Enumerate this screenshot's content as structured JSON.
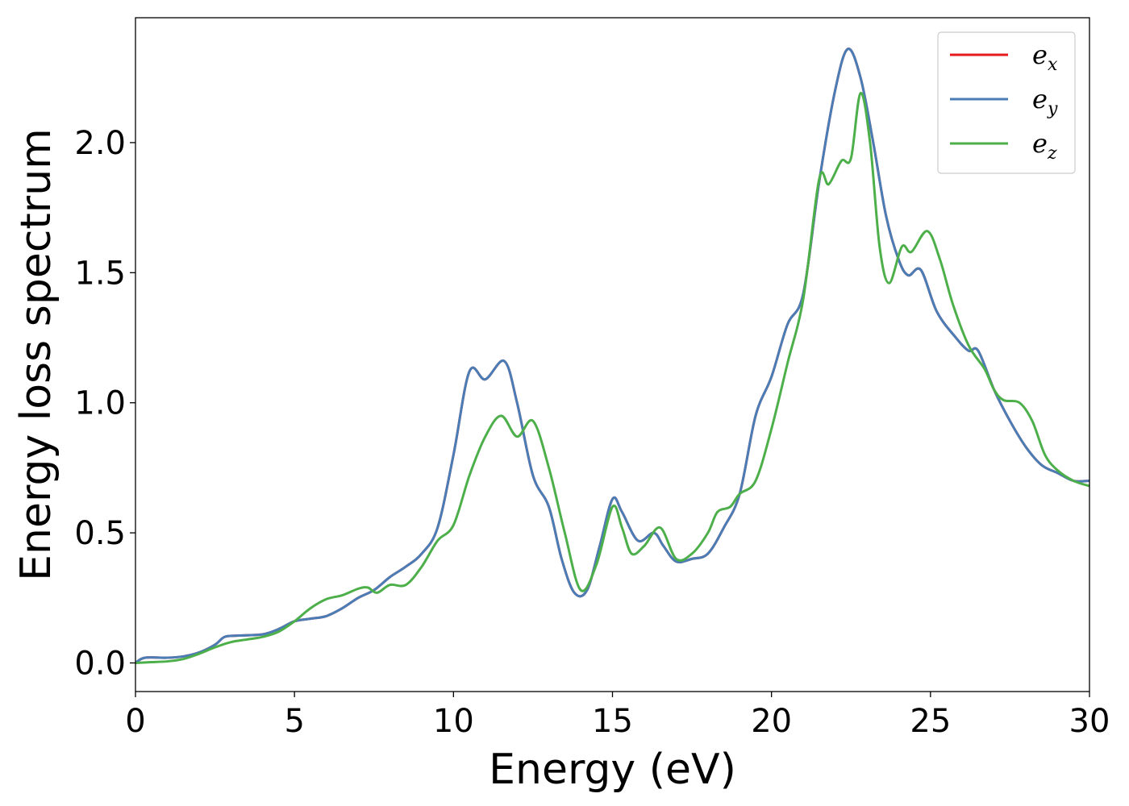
{
  "chart_data": {
    "type": "line",
    "xlabel": "Energy (eV)",
    "ylabel": "Energy loss spectrum",
    "xlim": [
      0,
      30
    ],
    "ylim": [
      -0.11,
      2.48
    ],
    "xticks": [
      0,
      5,
      10,
      15,
      20,
      25,
      30
    ],
    "yticks": [
      0.0,
      0.5,
      1.0,
      1.5,
      2.0
    ],
    "xtick_labels": [
      "0",
      "5",
      "10",
      "15",
      "20",
      "25",
      "30"
    ],
    "ytick_labels": [
      "0.0",
      "0.5",
      "1.0",
      "1.5",
      "2.0"
    ],
    "grid": false,
    "legend_position": "top-right",
    "series": [
      {
        "name": "e",
        "subscript": "x",
        "color": "#e41a1c",
        "points": [
          [
            0,
            0
          ],
          [
            0.3,
            0.02
          ],
          [
            1,
            0.02
          ],
          [
            1.5,
            0.025
          ],
          [
            2,
            0.04
          ],
          [
            2.5,
            0.07
          ],
          [
            2.8,
            0.1
          ],
          [
            3.2,
            0.105
          ],
          [
            4,
            0.11
          ],
          [
            4.5,
            0.13
          ],
          [
            5,
            0.16
          ],
          [
            5.5,
            0.17
          ],
          [
            6,
            0.18
          ],
          [
            6.5,
            0.21
          ],
          [
            7,
            0.25
          ],
          [
            7.5,
            0.28
          ],
          [
            8,
            0.33
          ],
          [
            8.5,
            0.37
          ],
          [
            9,
            0.42
          ],
          [
            9.5,
            0.52
          ],
          [
            10,
            0.8
          ],
          [
            10.5,
            1.12
          ],
          [
            11,
            1.09
          ],
          [
            11.6,
            1.16
          ],
          [
            12,
            1.0
          ],
          [
            12.5,
            0.72
          ],
          [
            13,
            0.6
          ],
          [
            13.4,
            0.4
          ],
          [
            13.8,
            0.27
          ],
          [
            14.2,
            0.28
          ],
          [
            14.6,
            0.45
          ],
          [
            15,
            0.63
          ],
          [
            15.3,
            0.58
          ],
          [
            15.8,
            0.47
          ],
          [
            16.3,
            0.5
          ],
          [
            16.6,
            0.45
          ],
          [
            17,
            0.39
          ],
          [
            17.5,
            0.4
          ],
          [
            18,
            0.42
          ],
          [
            18.5,
            0.52
          ],
          [
            19,
            0.65
          ],
          [
            19.5,
            0.95
          ],
          [
            20,
            1.1
          ],
          [
            20.5,
            1.3
          ],
          [
            21,
            1.42
          ],
          [
            21.5,
            1.85
          ],
          [
            22,
            2.2
          ],
          [
            22.4,
            2.36
          ],
          [
            22.8,
            2.25
          ],
          [
            23.2,
            2.0
          ],
          [
            23.6,
            1.72
          ],
          [
            24,
            1.55
          ],
          [
            24.3,
            1.49
          ],
          [
            24.7,
            1.51
          ],
          [
            25.2,
            1.35
          ],
          [
            25.8,
            1.25
          ],
          [
            26.2,
            1.2
          ],
          [
            26.5,
            1.2
          ],
          [
            27,
            1.05
          ],
          [
            27.5,
            0.93
          ],
          [
            28,
            0.83
          ],
          [
            28.5,
            0.76
          ],
          [
            29,
            0.73
          ],
          [
            29.5,
            0.7
          ],
          [
            30,
            0.7
          ]
        ]
      },
      {
        "name": "e",
        "subscript": "y",
        "color": "#4a7db5",
        "points": [
          [
            0,
            0
          ],
          [
            0.3,
            0.02
          ],
          [
            1,
            0.02
          ],
          [
            1.5,
            0.025
          ],
          [
            2,
            0.04
          ],
          [
            2.5,
            0.07
          ],
          [
            2.8,
            0.1
          ],
          [
            3.2,
            0.105
          ],
          [
            4,
            0.11
          ],
          [
            4.5,
            0.13
          ],
          [
            5,
            0.16
          ],
          [
            5.5,
            0.17
          ],
          [
            6,
            0.18
          ],
          [
            6.5,
            0.21
          ],
          [
            7,
            0.25
          ],
          [
            7.5,
            0.28
          ],
          [
            8,
            0.33
          ],
          [
            8.5,
            0.37
          ],
          [
            9,
            0.42
          ],
          [
            9.5,
            0.52
          ],
          [
            10,
            0.8
          ],
          [
            10.5,
            1.12
          ],
          [
            11,
            1.09
          ],
          [
            11.6,
            1.16
          ],
          [
            12,
            1.0
          ],
          [
            12.5,
            0.72
          ],
          [
            13,
            0.6
          ],
          [
            13.4,
            0.4
          ],
          [
            13.8,
            0.27
          ],
          [
            14.2,
            0.28
          ],
          [
            14.6,
            0.45
          ],
          [
            15,
            0.63
          ],
          [
            15.3,
            0.58
          ],
          [
            15.8,
            0.47
          ],
          [
            16.3,
            0.5
          ],
          [
            16.6,
            0.45
          ],
          [
            17,
            0.39
          ],
          [
            17.5,
            0.4
          ],
          [
            18,
            0.42
          ],
          [
            18.5,
            0.52
          ],
          [
            19,
            0.65
          ],
          [
            19.5,
            0.95
          ],
          [
            20,
            1.1
          ],
          [
            20.5,
            1.3
          ],
          [
            21,
            1.42
          ],
          [
            21.5,
            1.85
          ],
          [
            22,
            2.2
          ],
          [
            22.4,
            2.36
          ],
          [
            22.8,
            2.25
          ],
          [
            23.2,
            2.0
          ],
          [
            23.6,
            1.72
          ],
          [
            24,
            1.55
          ],
          [
            24.3,
            1.49
          ],
          [
            24.7,
            1.51
          ],
          [
            25.2,
            1.35
          ],
          [
            25.8,
            1.25
          ],
          [
            26.2,
            1.2
          ],
          [
            26.5,
            1.2
          ],
          [
            27,
            1.05
          ],
          [
            27.5,
            0.93
          ],
          [
            28,
            0.83
          ],
          [
            28.5,
            0.76
          ],
          [
            29,
            0.73
          ],
          [
            29.5,
            0.7
          ],
          [
            30,
            0.7
          ]
        ]
      },
      {
        "name": "e",
        "subscript": "z",
        "color": "#4daf4a",
        "points": [
          [
            0,
            0
          ],
          [
            0.5,
            0.003
          ],
          [
            1,
            0.006
          ],
          [
            1.5,
            0.015
          ],
          [
            2,
            0.035
          ],
          [
            2.5,
            0.06
          ],
          [
            3,
            0.08
          ],
          [
            3.5,
            0.09
          ],
          [
            4,
            0.1
          ],
          [
            4.5,
            0.12
          ],
          [
            5,
            0.16
          ],
          [
            5.5,
            0.21
          ],
          [
            6,
            0.245
          ],
          [
            6.5,
            0.26
          ],
          [
            7,
            0.285
          ],
          [
            7.3,
            0.29
          ],
          [
            7.6,
            0.27
          ],
          [
            8,
            0.3
          ],
          [
            8.5,
            0.3
          ],
          [
            9,
            0.37
          ],
          [
            9.5,
            0.47
          ],
          [
            10,
            0.53
          ],
          [
            10.5,
            0.72
          ],
          [
            11,
            0.87
          ],
          [
            11.5,
            0.95
          ],
          [
            12,
            0.87
          ],
          [
            12.5,
            0.93
          ],
          [
            13,
            0.75
          ],
          [
            13.5,
            0.5
          ],
          [
            14,
            0.28
          ],
          [
            14.5,
            0.38
          ],
          [
            15,
            0.6
          ],
          [
            15.3,
            0.52
          ],
          [
            15.6,
            0.42
          ],
          [
            16,
            0.45
          ],
          [
            16.5,
            0.52
          ],
          [
            17,
            0.4
          ],
          [
            17.5,
            0.42
          ],
          [
            18,
            0.5
          ],
          [
            18.3,
            0.58
          ],
          [
            18.7,
            0.6
          ],
          [
            19,
            0.65
          ],
          [
            19.5,
            0.7
          ],
          [
            20,
            0.9
          ],
          [
            20.5,
            1.15
          ],
          [
            21,
            1.4
          ],
          [
            21.5,
            1.86
          ],
          [
            21.8,
            1.84
          ],
          [
            22.2,
            1.93
          ],
          [
            22.5,
            1.94
          ],
          [
            22.8,
            2.19
          ],
          [
            23.1,
            2.0
          ],
          [
            23.4,
            1.6
          ],
          [
            23.7,
            1.46
          ],
          [
            24.1,
            1.6
          ],
          [
            24.4,
            1.58
          ],
          [
            24.9,
            1.66
          ],
          [
            25.3,
            1.55
          ],
          [
            25.7,
            1.38
          ],
          [
            26.2,
            1.22
          ],
          [
            26.7,
            1.13
          ],
          [
            27,
            1.05
          ],
          [
            27.3,
            1.01
          ],
          [
            27.8,
            1.0
          ],
          [
            28.2,
            0.93
          ],
          [
            28.6,
            0.8
          ],
          [
            29,
            0.74
          ],
          [
            29.5,
            0.7
          ],
          [
            30,
            0.68
          ]
        ]
      }
    ]
  }
}
